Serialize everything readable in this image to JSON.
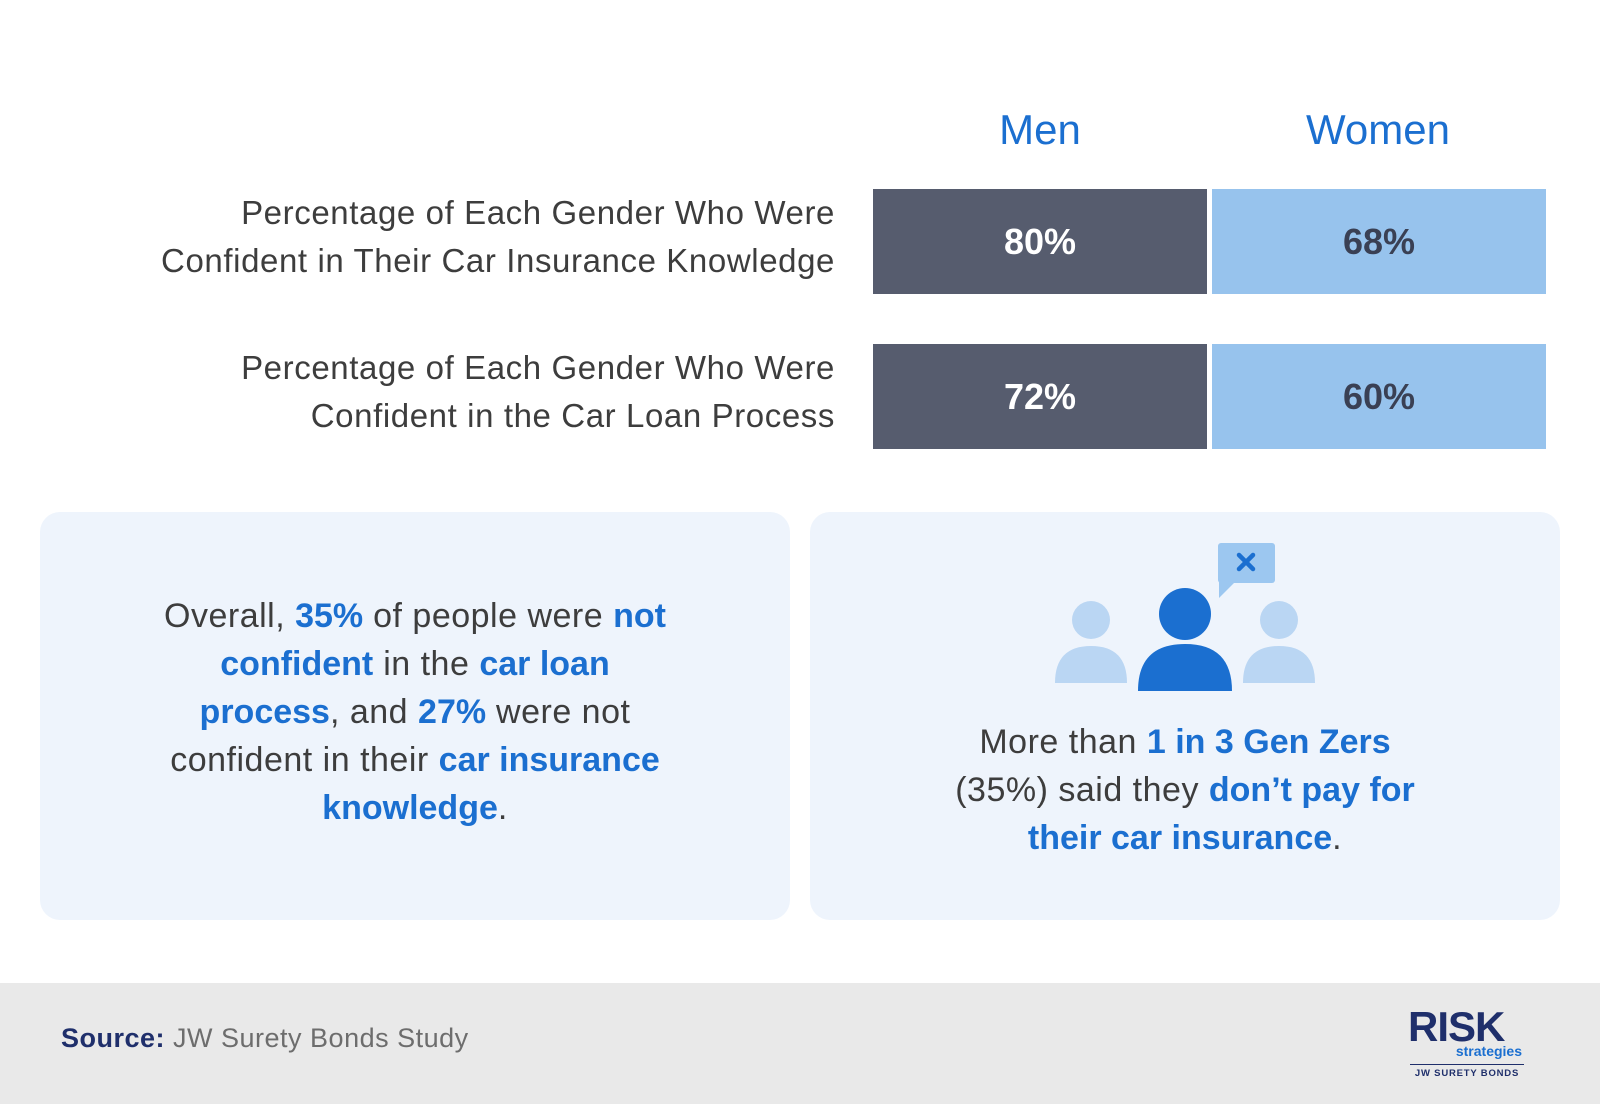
{
  "chart_data": {
    "type": "table",
    "columns": [
      "Men",
      "Women"
    ],
    "rows": [
      {
        "label": "Percentage of Each Gender Who Were\nConfident in Their Car Insurance Knowledge",
        "values": [
          80,
          68
        ],
        "display": [
          "80%",
          "68%"
        ]
      },
      {
        "label": "Percentage of Each Gender Who Were\nConfident in the Car Loan Process",
        "values": [
          72,
          60
        ],
        "display": [
          "72%",
          "60%"
        ]
      }
    ]
  },
  "colors": {
    "men": "#565c6e",
    "women": "#97c3ed",
    "accent": "#1b6fd0",
    "card_bg": "#eef4fc"
  },
  "card_left": {
    "t1": "Overall, ",
    "h1": "35%",
    "t2": " of people were ",
    "h2": "not confident",
    "t3": " in the ",
    "h3": "car loan process",
    "t4": ", and ",
    "h4": "27%",
    "t5": " were not confident in their ",
    "h5": "car insurance knowledge",
    "t6": "."
  },
  "card_right": {
    "icon": "people-chat-x-icon",
    "t1": "More than ",
    "h1": "1 in 3 Gen Zers",
    "t2": " (35%) said they ",
    "h2": "don’t pay for their car insurance",
    "t3": "."
  },
  "footer": {
    "source_label": "Source:",
    "source_text": " JW Surety Bonds Study",
    "logo": {
      "risk": "RISK",
      "strategies": "strategies",
      "jw": "JW SURETY BONDS"
    }
  }
}
